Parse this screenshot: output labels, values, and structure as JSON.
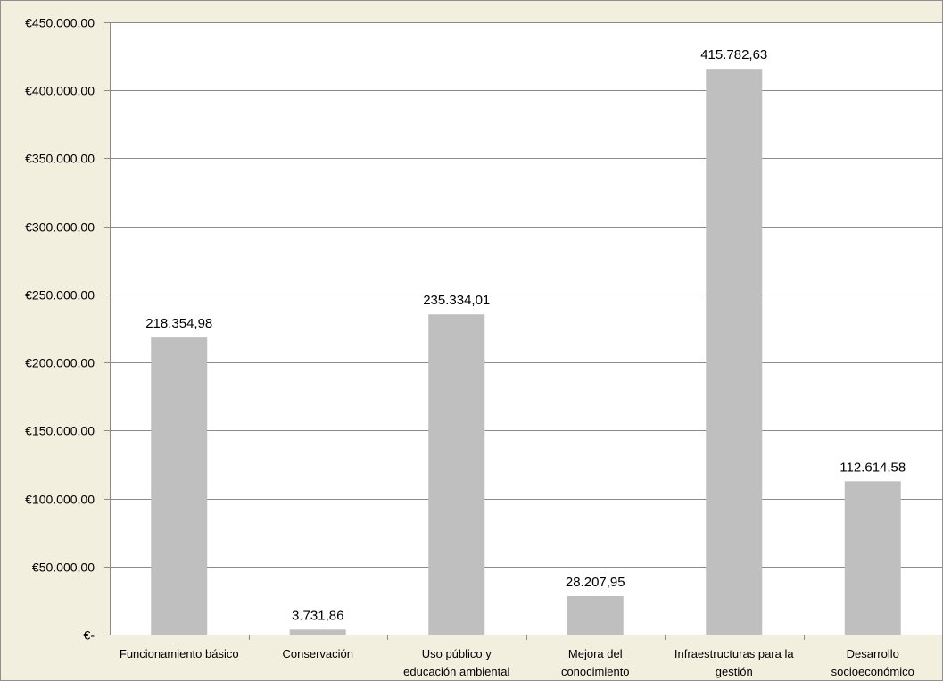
{
  "chart_data": {
    "type": "bar",
    "categories": [
      [
        "Funcionamiento básico"
      ],
      [
        "Conservación"
      ],
      [
        "Uso público y",
        "educación ambiental"
      ],
      [
        "Mejora del",
        "conocimiento"
      ],
      [
        "Infraestructuras para la",
        "gestión"
      ],
      [
        "Desarrollo",
        "socioeconómico"
      ]
    ],
    "values": [
      218354.98,
      3731.86,
      235334.01,
      28207.95,
      415782.63,
      112614.58
    ],
    "data_labels": [
      "218.354,98",
      "3.731,86",
      "235.334,01",
      "28.207,95",
      "415.782,63",
      "112.614,58"
    ],
    "y_ticks": [
      {
        "value": 0,
        "label": "€-"
      },
      {
        "value": 50000,
        "label": "€50.000,00"
      },
      {
        "value": 100000,
        "label": "€100.000,00"
      },
      {
        "value": 150000,
        "label": "€150.000,00"
      },
      {
        "value": 200000,
        "label": "€200.000,00"
      },
      {
        "value": 250000,
        "label": "€250.000,00"
      },
      {
        "value": 300000,
        "label": "€300.000,00"
      },
      {
        "value": 350000,
        "label": "€350.000,00"
      },
      {
        "value": 400000,
        "label": "€400.000,00"
      },
      {
        "value": 450000,
        "label": "€450.000,00"
      }
    ],
    "ylim": [
      0,
      450000
    ],
    "grid": true,
    "title": "",
    "xlabel": "",
    "ylabel": "",
    "colors": {
      "background": "#f2efdf",
      "plot_area": "#ffffff",
      "bar": "#bfbfbf",
      "grid": "#8a8a8a",
      "axis": "#8a8a8a"
    }
  }
}
